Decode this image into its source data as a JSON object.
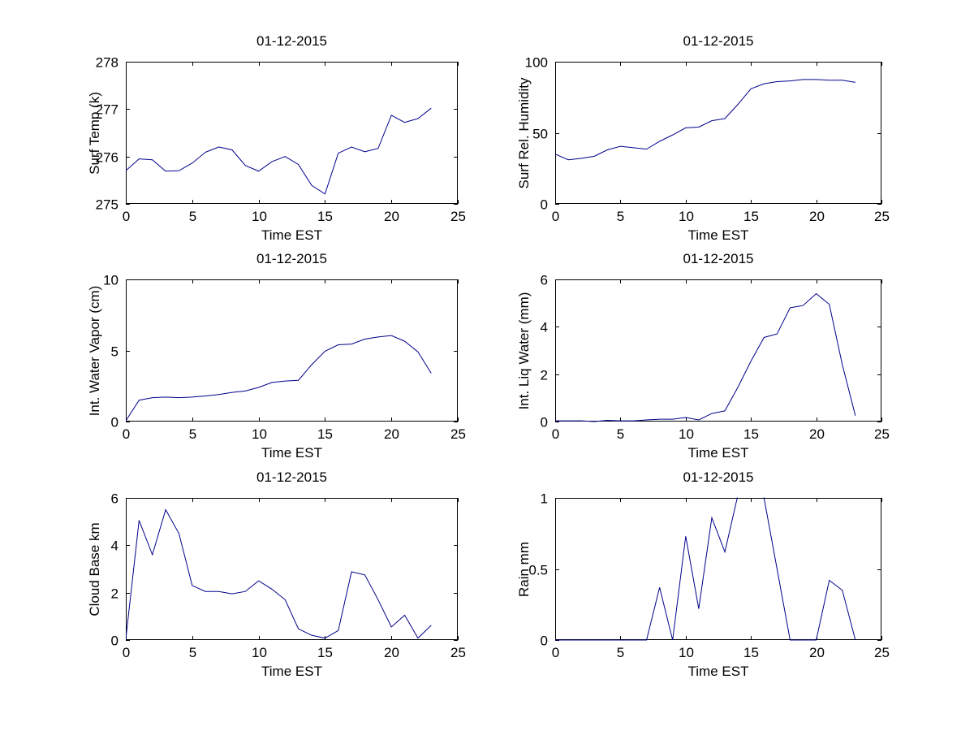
{
  "figure": {
    "background": "#ffffff",
    "line_color": "#00008C",
    "axis_color": "#000000",
    "date": "01-12-2015"
  },
  "chart_data": [
    {
      "id": "surf-temp",
      "type": "line",
      "title": "01-12-2015",
      "xlabel": "Time EST",
      "ylabel": "Surf Temp (k)",
      "xlim": [
        0,
        25
      ],
      "ylim": [
        275,
        278
      ],
      "xticks": [
        0,
        5,
        10,
        15,
        20,
        25
      ],
      "yticks": [
        275,
        276,
        277,
        278
      ],
      "grid": false,
      "legend": null,
      "x": [
        0,
        1,
        2,
        3,
        4,
        5,
        6,
        7,
        8,
        9,
        10,
        11,
        12,
        13,
        14,
        15,
        16,
        17,
        18,
        19,
        20,
        21,
        22,
        23
      ],
      "values": [
        275.7,
        275.95,
        275.93,
        275.69,
        275.7,
        275.86,
        276.09,
        276.2,
        276.14,
        275.81,
        275.69,
        275.89,
        276.0,
        275.83,
        275.39,
        275.21,
        276.07,
        276.2,
        276.1,
        276.17,
        276.87,
        276.72,
        276.8,
        277.02
      ]
    },
    {
      "id": "humidity",
      "type": "line",
      "title": "01-12-2015",
      "xlabel": "Time EST",
      "ylabel": "Surf Rel. Humidity",
      "xlim": [
        0,
        25
      ],
      "ylim": [
        0,
        100
      ],
      "xticks": [
        0,
        5,
        10,
        15,
        20,
        25
      ],
      "yticks": [
        0,
        50,
        100
      ],
      "grid": false,
      "legend": null,
      "x": [
        0,
        1,
        2,
        3,
        4,
        5,
        6,
        7,
        8,
        9,
        10,
        11,
        12,
        13,
        14,
        15,
        16,
        17,
        18,
        19,
        20,
        21,
        22,
        23
      ],
      "values": [
        35,
        31,
        32,
        33.5,
        38,
        40.5,
        39.5,
        38.5,
        44,
        48.5,
        53.5,
        54,
        58.5,
        60,
        70,
        81,
        84.5,
        86,
        86.5,
        87.5,
        87.5,
        87,
        87,
        85.5
      ]
    },
    {
      "id": "water-vapor",
      "type": "line",
      "title": "01-12-2015",
      "xlabel": "Time EST",
      "ylabel": "Int. Water Vapor (cm)",
      "xlim": [
        0,
        25
      ],
      "ylim": [
        0,
        10
      ],
      "xticks": [
        0,
        5,
        10,
        15,
        20,
        25
      ],
      "yticks": [
        0,
        5,
        10
      ],
      "grid": false,
      "legend": null,
      "x": [
        0,
        1,
        2,
        3,
        4,
        5,
        6,
        7,
        8,
        9,
        10,
        11,
        12,
        13,
        14,
        15,
        16,
        17,
        18,
        19,
        20,
        21,
        22,
        23
      ],
      "values": [
        0.05,
        1.5,
        1.68,
        1.72,
        1.68,
        1.72,
        1.8,
        1.9,
        2.05,
        2.15,
        2.4,
        2.75,
        2.85,
        2.9,
        4.0,
        4.95,
        5.4,
        5.45,
        5.8,
        5.95,
        6.05,
        5.65,
        4.9,
        3.4
      ]
    },
    {
      "id": "liq-water",
      "type": "line",
      "title": "01-12-2015",
      "xlabel": "Time EST",
      "ylabel": "Int. Liq Water (mm)",
      "xlim": [
        0,
        25
      ],
      "ylim": [
        0,
        6
      ],
      "xticks": [
        0,
        5,
        10,
        15,
        20,
        25
      ],
      "yticks": [
        0,
        2,
        4,
        6
      ],
      "grid": false,
      "legend": null,
      "x": [
        0,
        1,
        2,
        3,
        4,
        5,
        6,
        7,
        8,
        9,
        10,
        11,
        12,
        13,
        14,
        15,
        16,
        17,
        18,
        19,
        20,
        21,
        22,
        23
      ],
      "values": [
        0.03,
        0.03,
        0.03,
        0.0,
        0.05,
        0.03,
        0.03,
        0.07,
        0.1,
        0.1,
        0.17,
        0.07,
        0.34,
        0.45,
        1.45,
        2.55,
        3.55,
        3.7,
        4.8,
        4.9,
        5.4,
        4.95,
        2.4,
        0.25
      ]
    },
    {
      "id": "cloud-base",
      "type": "line",
      "title": "01-12-2015",
      "xlabel": "Time EST",
      "ylabel": "Cloud Base km",
      "xlim": [
        0,
        25
      ],
      "ylim": [
        0,
        6
      ],
      "xticks": [
        0,
        5,
        10,
        15,
        20,
        25
      ],
      "yticks": [
        0,
        2,
        4,
        6
      ],
      "grid": false,
      "legend": null,
      "x": [
        0,
        1,
        2,
        3,
        4,
        5,
        6,
        7,
        8,
        9,
        10,
        11,
        12,
        13,
        14,
        15,
        16,
        17,
        18,
        19,
        20,
        21,
        22,
        23
      ],
      "values": [
        0.05,
        5.05,
        3.6,
        5.5,
        4.5,
        2.3,
        2.05,
        2.05,
        1.95,
        2.05,
        2.5,
        2.15,
        1.7,
        0.47,
        0.2,
        0.08,
        0.4,
        2.88,
        2.75,
        1.7,
        0.55,
        1.05,
        0.08,
        0.62
      ]
    },
    {
      "id": "rain",
      "type": "line",
      "title": "01-12-2015",
      "xlabel": "Time EST",
      "ylabel": "Rain mm",
      "xlim": [
        0,
        25
      ],
      "ylim": [
        0,
        1
      ],
      "xticks": [
        0,
        5,
        10,
        15,
        20,
        25
      ],
      "yticks": [
        0,
        0.5,
        1
      ],
      "grid": false,
      "legend": null,
      "x": [
        0,
        1,
        2,
        3,
        4,
        5,
        6,
        7,
        8,
        9,
        10,
        11,
        12,
        13,
        14,
        15,
        16,
        17,
        18,
        19,
        20,
        21,
        22,
        23
      ],
      "values": [
        0,
        0,
        0,
        0,
        0,
        0,
        0,
        0,
        0.37,
        0,
        0.73,
        0.22,
        0.86,
        0.62,
        1.02,
        1.2,
        1.0,
        0.5,
        0,
        0,
        0,
        0.42,
        0.35,
        0
      ]
    }
  ]
}
